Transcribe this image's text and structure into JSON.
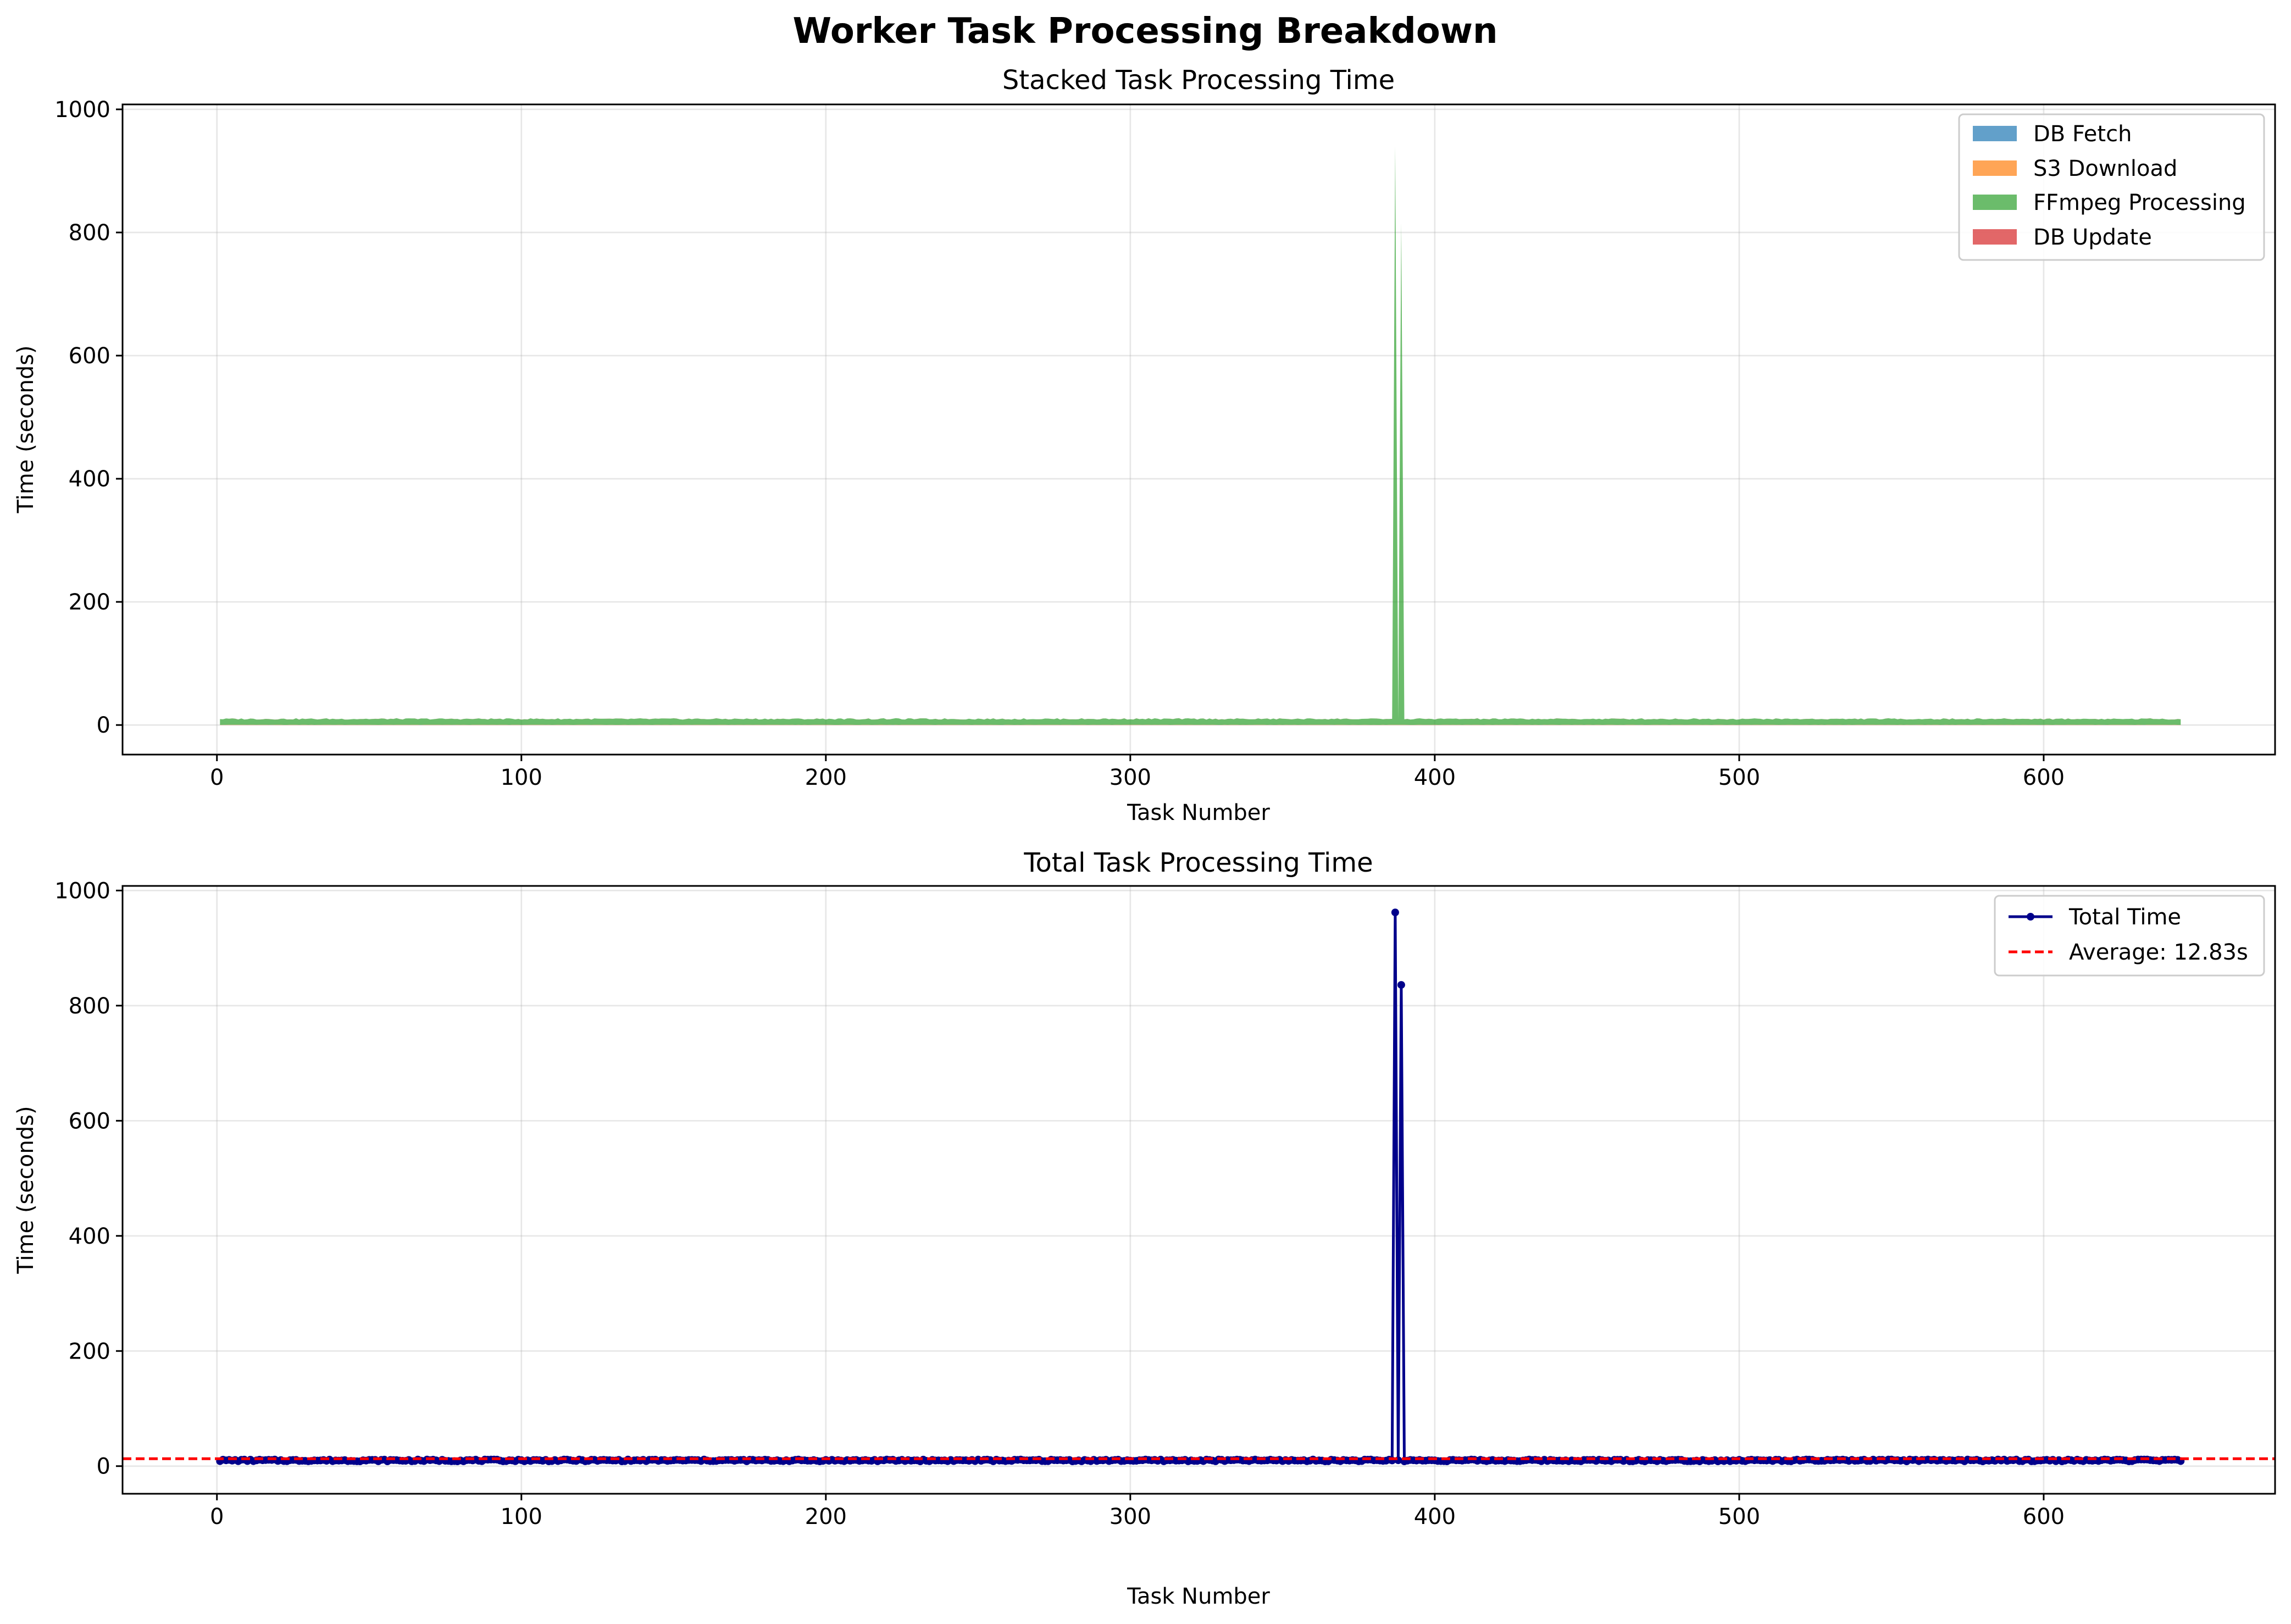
{
  "figure_title": "Worker Task Processing Breakdown",
  "chart_data": [
    {
      "type": "area",
      "title": "Stacked Task Processing Time",
      "xlabel": "Task Number",
      "ylabel": "Time (seconds)",
      "xlim": [
        -31,
        676
      ],
      "ylim": [
        -48,
        1008
      ],
      "xticks": [
        0,
        100,
        200,
        300,
        400,
        500,
        600
      ],
      "yticks": [
        0,
        200,
        400,
        600,
        800,
        1000
      ],
      "grid": true,
      "legend_position": "top-right",
      "x_range": [
        1,
        645
      ],
      "series": [
        {
          "name": "DB Fetch",
          "color": "#1f77b4",
          "baseline": 0.05
        },
        {
          "name": "S3 Download",
          "color": "#ff7f0e",
          "baseline": 0.3
        },
        {
          "name": "FFmpeg Processing",
          "color": "#2ca02c",
          "baseline": 9.5,
          "spikes": [
            [
              387,
              940
            ],
            [
              389,
              815
            ]
          ]
        },
        {
          "name": "DB Update",
          "color": "#d62728",
          "baseline": 0.05
        }
      ]
    },
    {
      "type": "line",
      "title": "Total Task Processing Time",
      "xlabel": "Task Number",
      "ylabel": "Time (seconds)",
      "xlim": [
        -31,
        676
      ],
      "ylim": [
        -48,
        1008
      ],
      "xticks": [
        0,
        100,
        200,
        300,
        400,
        500,
        600
      ],
      "yticks": [
        0,
        200,
        400,
        600,
        800,
        1000
      ],
      "grid": true,
      "legend_position": "top-right",
      "x_range": [
        1,
        645
      ],
      "series": [
        {
          "name": "Total Time",
          "color": "#00008b",
          "baseline": 9.9,
          "spikes": [
            [
              387,
              962
            ],
            [
              389,
              836
            ]
          ]
        }
      ],
      "reference_line": {
        "name": "Average: 12.83s",
        "value": 12.83,
        "color": "#ff0000",
        "style": "dashed"
      }
    }
  ]
}
